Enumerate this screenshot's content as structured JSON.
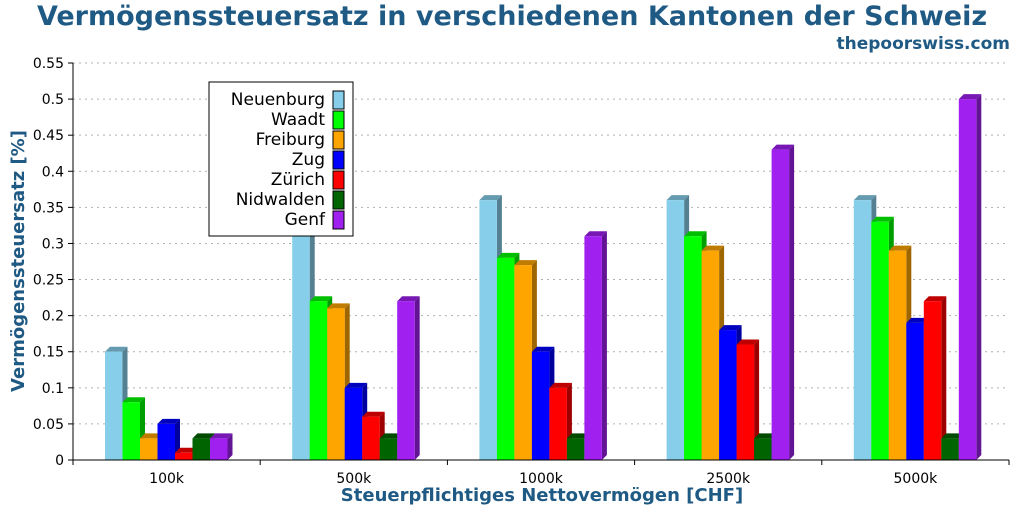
{
  "chart_data": {
    "type": "bar",
    "title": "Vermögenssteuersatz in verschiedenen Kantonen der Schweiz",
    "subtitle": "thepoorswiss.com",
    "xlabel": "Steuerpflichtiges Nettovermögen [CHF]",
    "ylabel": "Vermögenssteuersatz [%]",
    "categories": [
      "100k",
      "500k",
      "1000k",
      "2500k",
      "5000k"
    ],
    "ylim": [
      0,
      0.55
    ],
    "yticks": [
      "0",
      "0.05",
      "0.1",
      "0.15",
      "0.2",
      "0.25",
      "0.3",
      "0.35",
      "0.4",
      "0.45",
      "0.5",
      "0.55"
    ],
    "grid": true,
    "legend_position": "top-left",
    "series": [
      {
        "name": "Neuenburg",
        "color": "#87ceeb",
        "values": [
          0.15,
          0.35,
          0.36,
          0.36,
          0.36
        ]
      },
      {
        "name": "Waadt",
        "color": "#00ff00",
        "values": [
          0.08,
          0.22,
          0.28,
          0.31,
          0.33
        ]
      },
      {
        "name": "Freiburg",
        "color": "#ffa500",
        "values": [
          0.03,
          0.21,
          0.27,
          0.29,
          0.29
        ]
      },
      {
        "name": "Zug",
        "color": "#0000ff",
        "values": [
          0.05,
          0.1,
          0.15,
          0.18,
          0.19
        ]
      },
      {
        "name": "Zürich",
        "color": "#ff0000",
        "values": [
          0.01,
          0.06,
          0.1,
          0.16,
          0.22
        ]
      },
      {
        "name": "Nidwalden",
        "color": "#006400",
        "values": [
          0.03,
          0.03,
          0.03,
          0.03,
          0.03
        ]
      },
      {
        "name": "Genf",
        "color": "#a020f0",
        "values": [
          0.03,
          0.22,
          0.31,
          0.43,
          0.5
        ]
      }
    ]
  }
}
